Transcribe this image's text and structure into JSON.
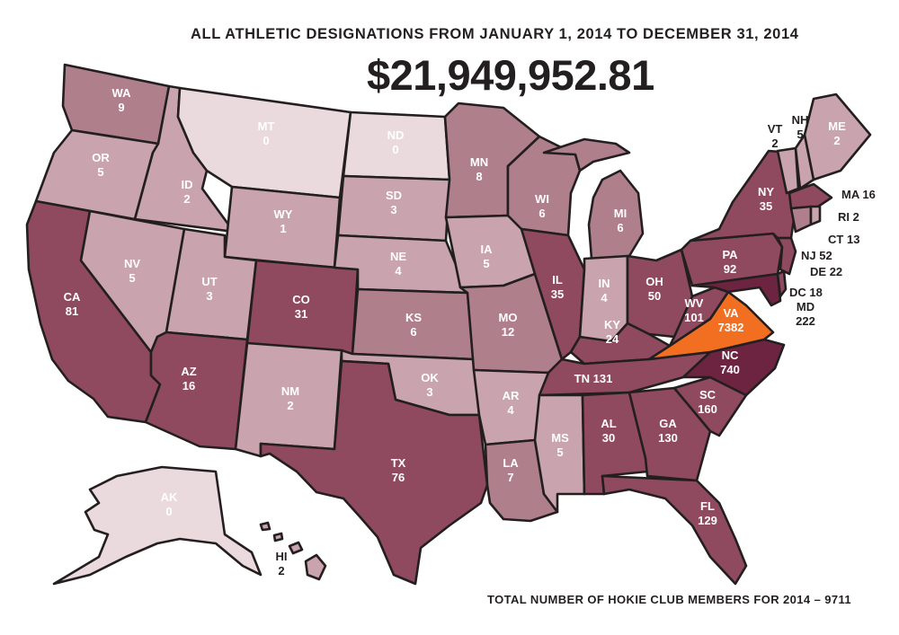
{
  "header": {
    "title": "ALL ATHLETIC DESIGNATIONS FROM JANUARY 1, 2014 TO DECEMBER 31, 2014",
    "total": "$21,949,952.81"
  },
  "footer": {
    "note": "TOTAL NUMBER OF HOKIE CLUB MEMBERS FOR 2014 – 9711"
  },
  "legend_colors": {
    "c0": "#ead9dd",
    "c1": "#c9a3ad",
    "c2": "#b07f8c",
    "c3": "#8f4a5f",
    "c4": "#6d2440",
    "highlight": "#f26f21"
  },
  "states": [
    {
      "code": "WA",
      "value": "9"
    },
    {
      "code": "OR",
      "value": "5"
    },
    {
      "code": "CA",
      "value": "81"
    },
    {
      "code": "ID",
      "value": "2"
    },
    {
      "code": "NV",
      "value": "5"
    },
    {
      "code": "MT",
      "value": "0"
    },
    {
      "code": "WY",
      "value": "1"
    },
    {
      "code": "UT",
      "value": "3"
    },
    {
      "code": "AZ",
      "value": "16"
    },
    {
      "code": "CO",
      "value": "31"
    },
    {
      "code": "NM",
      "value": "2"
    },
    {
      "code": "ND",
      "value": "0"
    },
    {
      "code": "SD",
      "value": "3"
    },
    {
      "code": "NE",
      "value": "4"
    },
    {
      "code": "KS",
      "value": "6"
    },
    {
      "code": "OK",
      "value": "3"
    },
    {
      "code": "TX",
      "value": "76"
    },
    {
      "code": "MN",
      "value": "8"
    },
    {
      "code": "IA",
      "value": "5"
    },
    {
      "code": "MO",
      "value": "12"
    },
    {
      "code": "AR",
      "value": "4"
    },
    {
      "code": "LA",
      "value": "7"
    },
    {
      "code": "WI",
      "value": "6"
    },
    {
      "code": "IL",
      "value": "35"
    },
    {
      "code": "MI",
      "value": "6"
    },
    {
      "code": "IN",
      "value": "4"
    },
    {
      "code": "OH",
      "value": "50"
    },
    {
      "code": "KY",
      "value": "24"
    },
    {
      "code": "TN",
      "value": "131"
    },
    {
      "code": "MS",
      "value": "5"
    },
    {
      "code": "AL",
      "value": "30"
    },
    {
      "code": "GA",
      "value": "130"
    },
    {
      "code": "FL",
      "value": "129"
    },
    {
      "code": "SC",
      "value": "160"
    },
    {
      "code": "NC",
      "value": "740"
    },
    {
      "code": "VA",
      "value": "7382"
    },
    {
      "code": "WV",
      "value": "101"
    },
    {
      "code": "PA",
      "value": "92"
    },
    {
      "code": "NY",
      "value": "35"
    },
    {
      "code": "ME",
      "value": "2"
    },
    {
      "code": "AK",
      "value": "0"
    },
    {
      "code": "VT",
      "value": "2"
    },
    {
      "code": "NH",
      "value": "5"
    },
    {
      "code": "MA",
      "value": "16"
    },
    {
      "code": "RI",
      "value": "2"
    },
    {
      "code": "CT",
      "value": "13"
    },
    {
      "code": "NJ",
      "value": "52"
    },
    {
      "code": "DE",
      "value": "22"
    },
    {
      "code": "DC",
      "value": "18"
    },
    {
      "code": "MD",
      "value": "222"
    },
    {
      "code": "HI",
      "value": "2"
    }
  ]
}
